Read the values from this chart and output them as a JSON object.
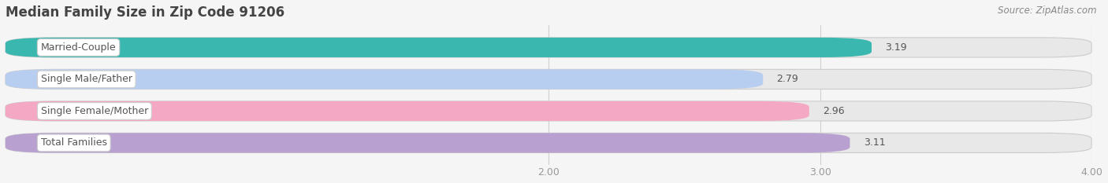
{
  "title": "Median Family Size in Zip Code 91206",
  "source": "Source: ZipAtlas.com",
  "categories": [
    "Married-Couple",
    "Single Male/Father",
    "Single Female/Mother",
    "Total Families"
  ],
  "values": [
    3.19,
    2.79,
    2.96,
    3.11
  ],
  "bar_colors": [
    "#3ab8b0",
    "#b8cef0",
    "#f4a8c4",
    "#b8a0d0"
  ],
  "bar_bg_color": "#e8e8e8",
  "xlim": [
    0.0,
    4.0
  ],
  "xticks": [
    2.0,
    3.0,
    4.0
  ],
  "xtick_labels": [
    "2.00",
    "3.00",
    "4.00"
  ],
  "title_fontsize": 12,
  "label_fontsize": 9,
  "value_fontsize": 9,
  "source_fontsize": 8.5,
  "bar_height": 0.62,
  "background_color": "#f5f5f5",
  "label_bg_color": "#ffffff",
  "grid_color": "#d0d0d0",
  "text_color": "#555555",
  "tick_color": "#999999"
}
